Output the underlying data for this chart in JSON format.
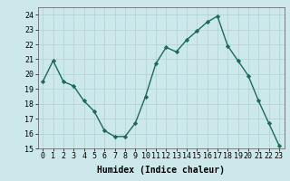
{
  "x": [
    0,
    1,
    2,
    3,
    4,
    5,
    6,
    7,
    8,
    9,
    10,
    11,
    12,
    13,
    14,
    15,
    16,
    17,
    18,
    19,
    20,
    21,
    22,
    23
  ],
  "y": [
    19.5,
    20.9,
    19.5,
    19.2,
    18.2,
    17.5,
    16.2,
    15.8,
    15.8,
    16.7,
    18.5,
    20.7,
    21.8,
    21.5,
    22.3,
    22.9,
    23.5,
    23.9,
    21.9,
    20.9,
    19.9,
    18.2,
    16.7,
    15.2
  ],
  "line_color": "#1a6b5a",
  "marker": "D",
  "marker_size": 2.2,
  "bg_color": "#cce8ea",
  "grid_color": "#aed0d4",
  "xlabel": "Humidex (Indice chaleur)",
  "xlim": [
    -0.5,
    23.5
  ],
  "ylim": [
    15,
    24.5
  ],
  "yticks": [
    15,
    16,
    17,
    18,
    19,
    20,
    21,
    22,
    23,
    24
  ],
  "xticks": [
    0,
    1,
    2,
    3,
    4,
    5,
    6,
    7,
    8,
    9,
    10,
    11,
    12,
    13,
    14,
    15,
    16,
    17,
    18,
    19,
    20,
    21,
    22,
    23
  ],
  "xlabel_fontsize": 7,
  "tick_fontsize": 6,
  "line_width": 1.0
}
